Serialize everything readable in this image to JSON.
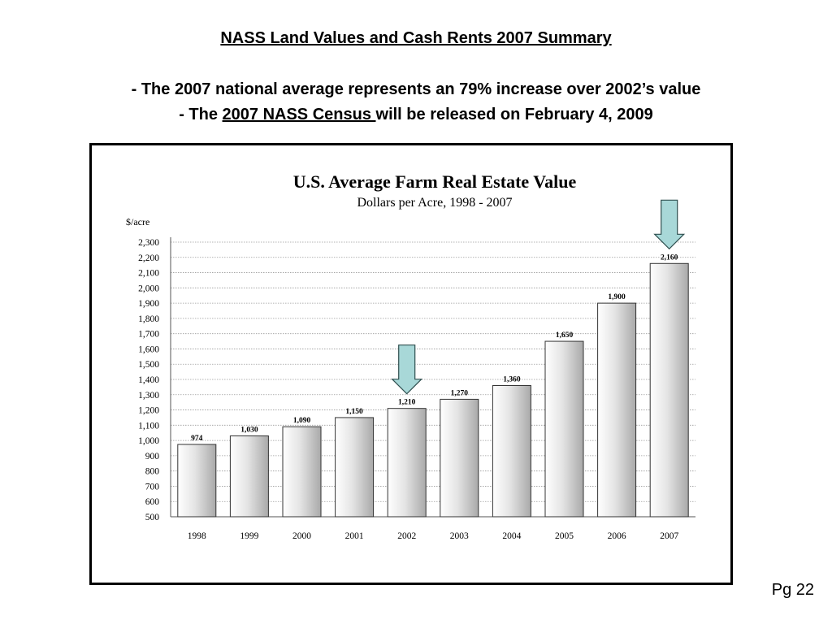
{
  "slide": {
    "title": "NASS Land Values and Cash Rents 2007 Summary",
    "bullet1": "- The 2007 national average represents an 79% increase over 2002’s value",
    "bullet2_prefix": "- The ",
    "bullet2_link": "2007 NASS Census ",
    "bullet2_suffix": "will be released on February 4, 2009",
    "page_number": "Pg 22"
  },
  "chart_data": {
    "type": "bar",
    "title": "U.S. Average Farm Real Estate Value",
    "subtitle": "Dollars per Acre, 1998 - 2007",
    "ylabel": "$/acre",
    "xlabel": "",
    "ylim": [
      500,
      2300
    ],
    "ytick_step": 100,
    "grid": true,
    "categories": [
      "1998",
      "1999",
      "2000",
      "2001",
      "2002",
      "2003",
      "2004",
      "2005",
      "2006",
      "2007"
    ],
    "values": [
      974,
      1030,
      1090,
      1150,
      1210,
      1270,
      1360,
      1650,
      1900,
      2160
    ],
    "data_labels": [
      "974",
      "1,030",
      "1,090",
      "1,150",
      "1,210",
      "1,270",
      "1,360",
      "1,650",
      "1,900",
      "2,160"
    ],
    "highlighted_categories": [
      "2002",
      "2007"
    ],
    "arrow_color": "#a8d8d8",
    "bar_color": "#e0e0e0"
  }
}
